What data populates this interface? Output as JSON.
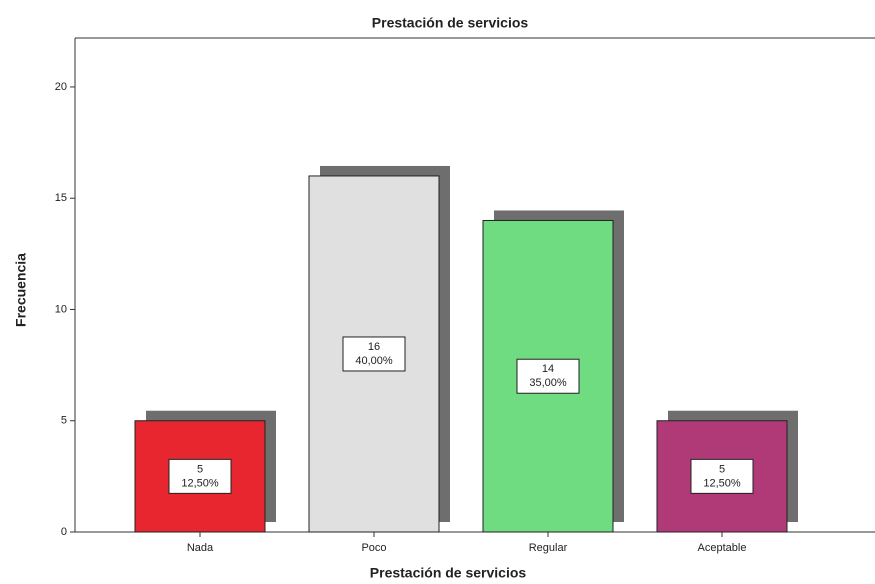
{
  "chart_data": {
    "type": "bar",
    "title": "Prestación de servicios",
    "x_label": "Prestación de servicios",
    "y_label": "Frecuencia",
    "categories": [
      "Nada",
      "Poco",
      "Regular",
      "Aceptable"
    ],
    "values": [
      5,
      16,
      14,
      5
    ],
    "percent_labels": [
      "12,50%",
      "40,00%",
      "35,00%",
      "12,50%"
    ],
    "colors": [
      "#e8262f",
      "#e0e0e0",
      "#6fdc82",
      "#b03a78"
    ],
    "ylim": [
      0,
      22.2
    ],
    "yticks": [
      0,
      5,
      10,
      15,
      20
    ]
  }
}
